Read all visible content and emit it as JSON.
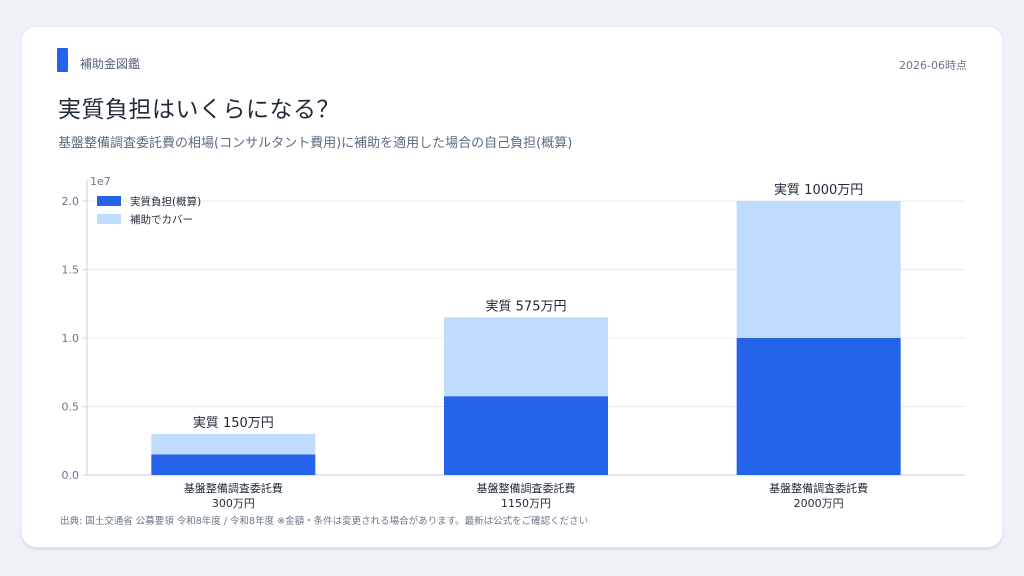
{
  "header": {
    "brand": "補助金図鑑",
    "as_of": "2026-06時点",
    "title": "実質負担はいくらになる？",
    "subtitle": "基盤整備調査委託費の相場(コンサルタント費用)に補助を適用した場合の自己負担(概算)"
  },
  "footer": {
    "source": "出典: 国土交通省 公募要領 令和8年度 / 令和8年度 ※金額・条件は変更される場合があります。最新は公式をご確認ください"
  },
  "colors": {
    "accent": "#2563eb",
    "self_pay": "#2563eb",
    "subsidy": "#bfdbfe",
    "grid": "#e7ebf0"
  },
  "chart_data": {
    "type": "bar",
    "stacked": true,
    "categories": [
      "基盤整備調査委託費\n300万円",
      "基盤整備調査委託費\n1150万円",
      "基盤整備調査委託費\n2000万円"
    ],
    "series": [
      {
        "name": "実質負担(概算)",
        "values": [
          1500000,
          5750000,
          10000000
        ]
      },
      {
        "name": "補助でカバー",
        "values": [
          1500000,
          5750000,
          10000000
        ]
      }
    ],
    "data_labels": [
      "実質 150万円",
      "実質 575万円",
      "実質 1000万円"
    ],
    "y_ticks": [
      "0.0",
      "0.5",
      "1.0",
      "1.5",
      "2.0"
    ],
    "y_tick_values": [
      0,
      5000000,
      10000000,
      15000000,
      20000000
    ],
    "y_offset_label": "1e7",
    "ylim": [
      0,
      20800000
    ],
    "grid": true,
    "legend_position": "top-left"
  }
}
